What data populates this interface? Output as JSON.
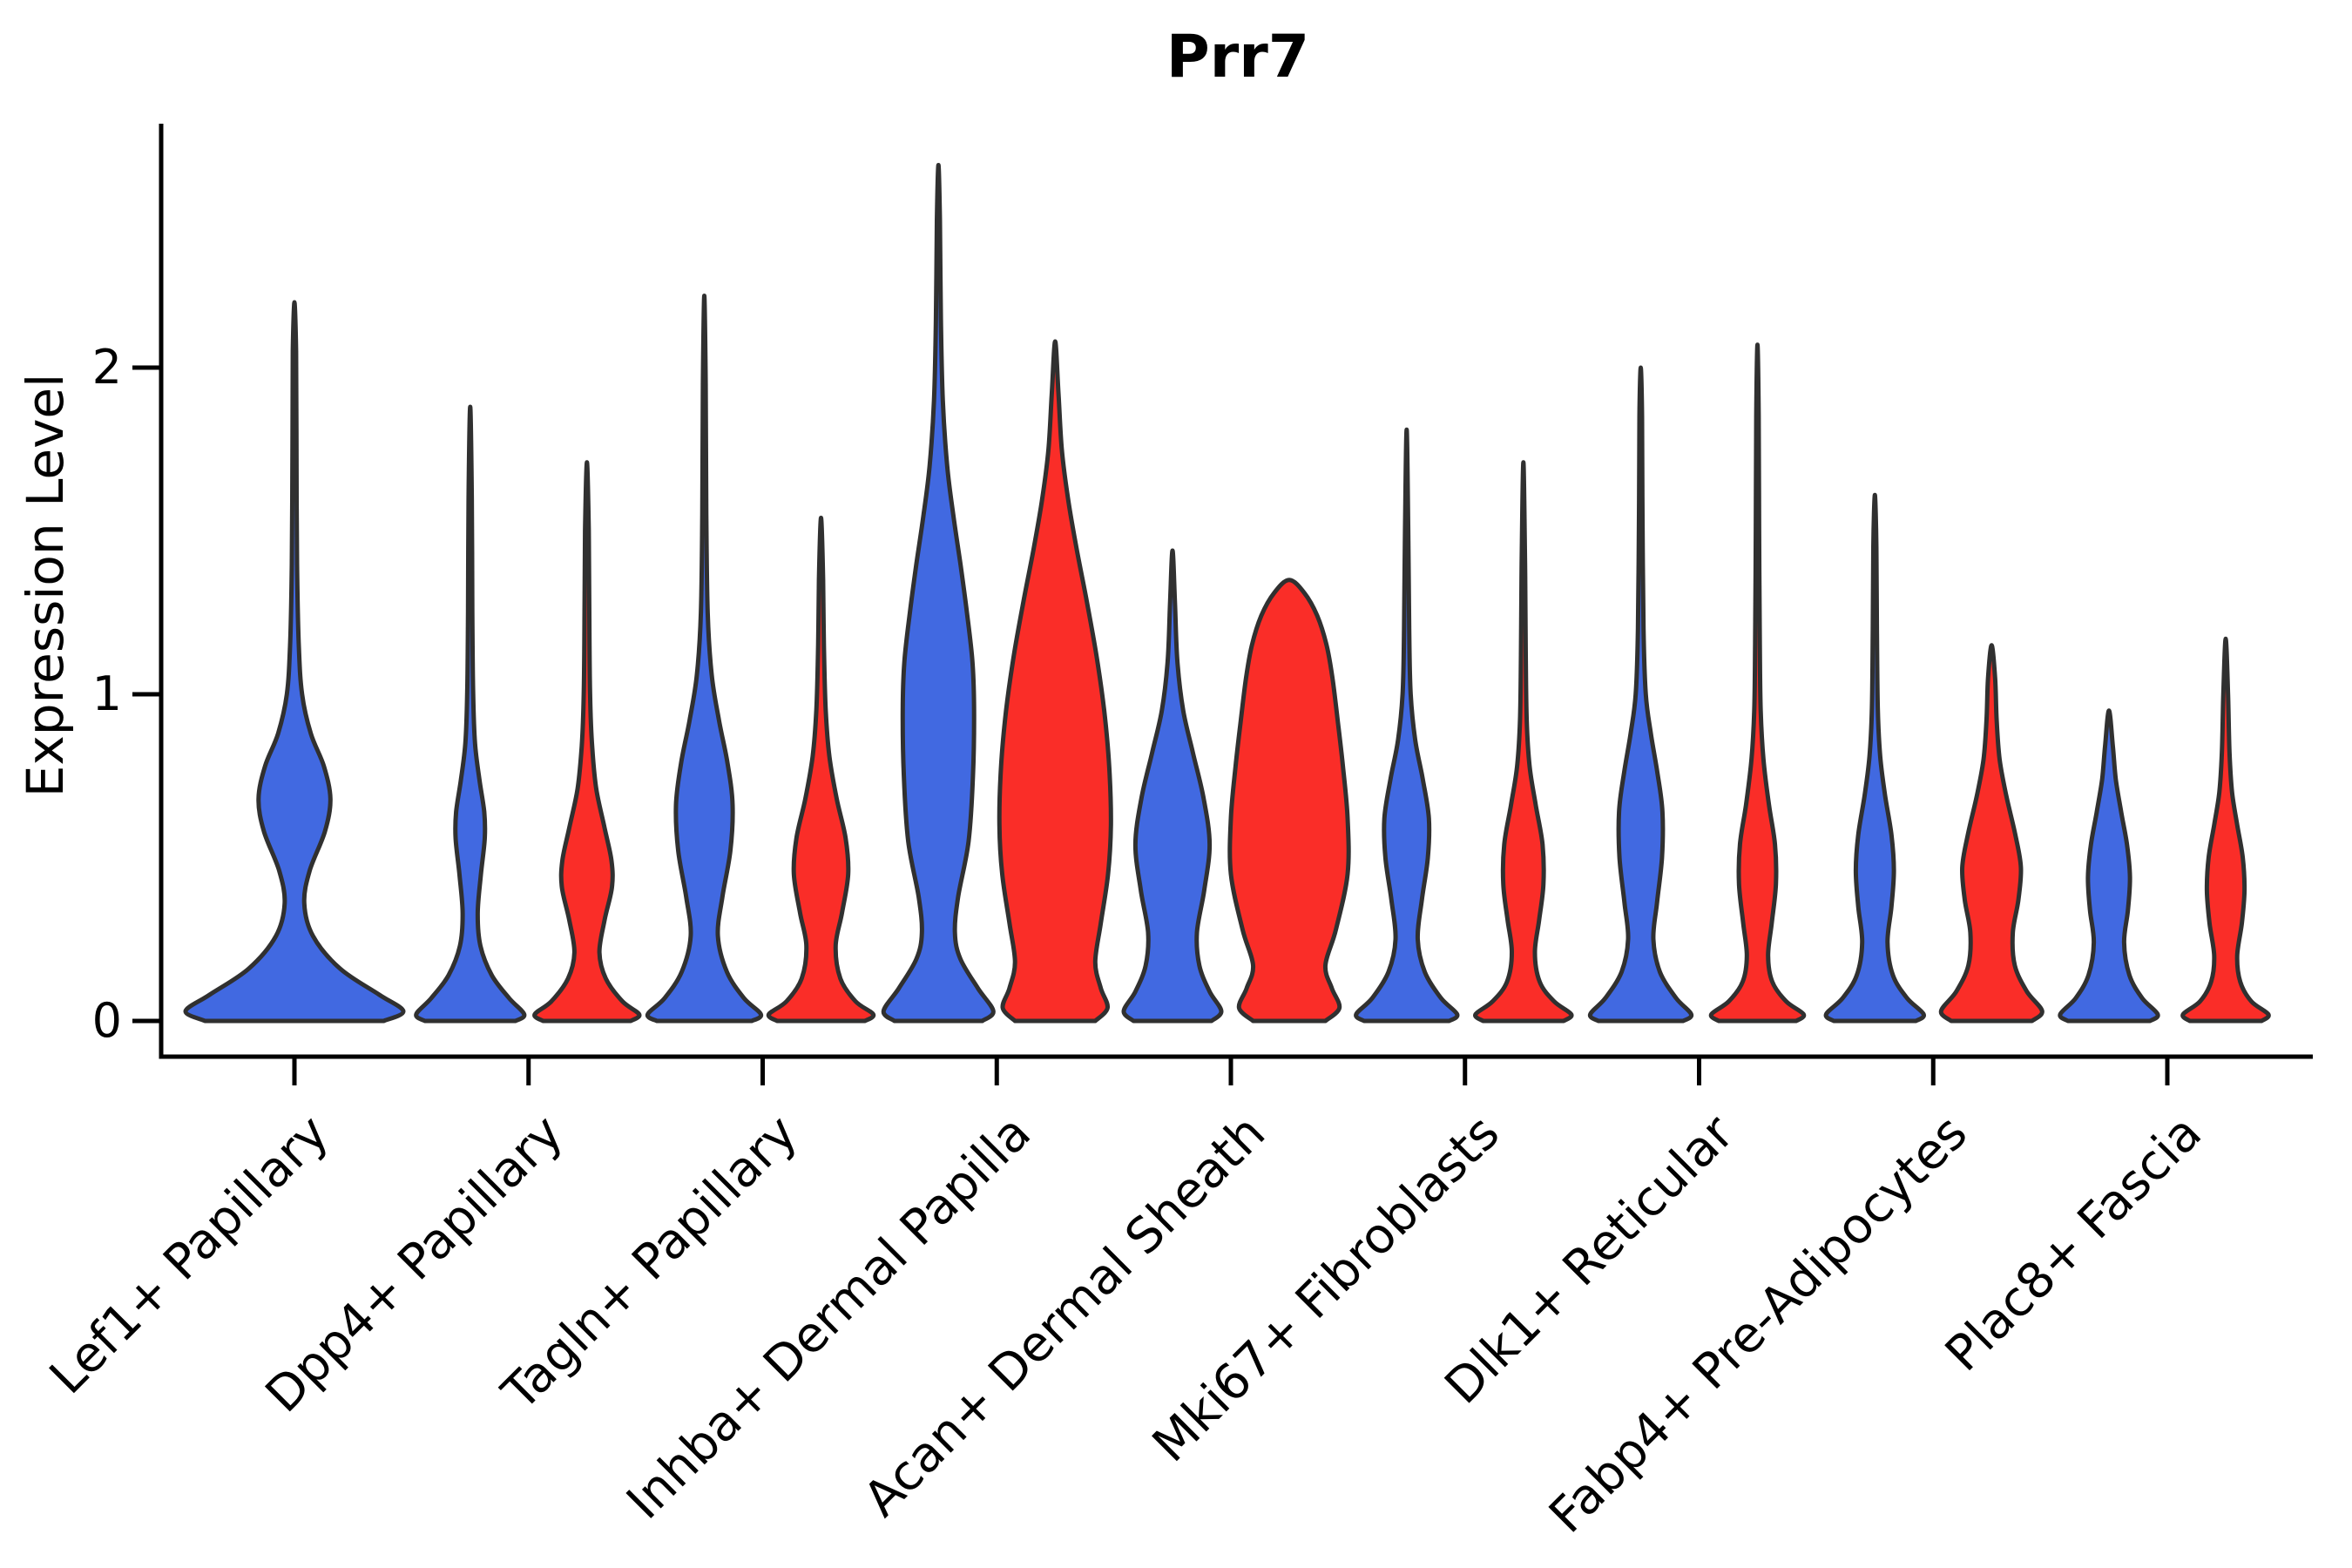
{
  "chart_data": {
    "type": "violin",
    "title": "Prr7",
    "xlabel": "",
    "ylabel": "Expression Level",
    "yticks": [
      0,
      1,
      2
    ],
    "ylim": [
      -0.11,
      2.77
    ],
    "grid": false,
    "legend": "none",
    "split_colors": {
      "blue": "#4169e1",
      "red": "#fa2d28"
    },
    "outline_color": "#303030",
    "axis_color": "#000000",
    "categories": [
      "Lef1+ Papillary",
      "Dpp4+ Papillary",
      "Tagln+ Papillary",
      "Inhba+ Dermal Papilla",
      "Acan+ Dermal Sheath",
      "Mki67+ Fibroblasts",
      "Dlk1+ Reticular",
      "Fabp4+ Pre-Adipocytes",
      "Plac8+ Fascia"
    ],
    "violins": [
      {
        "category": "Lef1+ Papillary",
        "split": "single",
        "color": "blue",
        "peak": 2.2,
        "hw": 125,
        "profile": [
          [
            0,
            0.82
          ],
          [
            0.03,
            1.0
          ],
          [
            0.08,
            0.78
          ],
          [
            0.16,
            0.42
          ],
          [
            0.26,
            0.17
          ],
          [
            0.36,
            0.09
          ],
          [
            0.46,
            0.14
          ],
          [
            0.58,
            0.28
          ],
          [
            0.68,
            0.33
          ],
          [
            0.78,
            0.27
          ],
          [
            0.88,
            0.15
          ],
          [
            1.0,
            0.07
          ],
          [
            1.15,
            0.04
          ],
          [
            1.4,
            0.024
          ],
          [
            1.8,
            0.018
          ],
          [
            2.05,
            0.015
          ],
          [
            2.2,
            0
          ]
        ]
      },
      {
        "category": "Dpp4+ Papillary",
        "split": "left",
        "color": "blue",
        "peak": 1.88,
        "hw": 62,
        "profile": [
          [
            0,
            0.84
          ],
          [
            0.02,
            1.0
          ],
          [
            0.07,
            0.72
          ],
          [
            0.14,
            0.4
          ],
          [
            0.23,
            0.19
          ],
          [
            0.33,
            0.14
          ],
          [
            0.45,
            0.2
          ],
          [
            0.56,
            0.27
          ],
          [
            0.64,
            0.26
          ],
          [
            0.74,
            0.17
          ],
          [
            0.85,
            0.09
          ],
          [
            1.0,
            0.055
          ],
          [
            1.25,
            0.04
          ],
          [
            1.6,
            0.03
          ],
          [
            1.88,
            0
          ]
        ]
      },
      {
        "category": "Dpp4+ Papillary",
        "split": "right",
        "color": "red",
        "peak": 1.71,
        "hw": 60,
        "profile": [
          [
            0,
            0.84
          ],
          [
            0.02,
            1.0
          ],
          [
            0.06,
            0.68
          ],
          [
            0.13,
            0.36
          ],
          [
            0.21,
            0.24
          ],
          [
            0.31,
            0.34
          ],
          [
            0.41,
            0.48
          ],
          [
            0.49,
            0.47
          ],
          [
            0.59,
            0.34
          ],
          [
            0.71,
            0.18
          ],
          [
            0.84,
            0.1
          ],
          [
            1.0,
            0.06
          ],
          [
            1.25,
            0.045
          ],
          [
            1.5,
            0.035
          ],
          [
            1.71,
            0
          ]
        ]
      },
      {
        "category": "Tagln+ Papillary",
        "split": "left",
        "color": "blue",
        "peak": 2.22,
        "hw": 65,
        "profile": [
          [
            0,
            0.84
          ],
          [
            0.02,
            1.0
          ],
          [
            0.07,
            0.7
          ],
          [
            0.15,
            0.4
          ],
          [
            0.26,
            0.24
          ],
          [
            0.38,
            0.32
          ],
          [
            0.52,
            0.46
          ],
          [
            0.66,
            0.5
          ],
          [
            0.79,
            0.41
          ],
          [
            0.92,
            0.26
          ],
          [
            1.06,
            0.13
          ],
          [
            1.25,
            0.06
          ],
          [
            1.55,
            0.035
          ],
          [
            1.95,
            0.025
          ],
          [
            2.22,
            0
          ]
        ]
      },
      {
        "category": "Tagln+ Papillary",
        "split": "right",
        "color": "red",
        "peak": 1.54,
        "hw": 60,
        "profile": [
          [
            0,
            0.84
          ],
          [
            0.02,
            1.0
          ],
          [
            0.06,
            0.66
          ],
          [
            0.13,
            0.37
          ],
          [
            0.23,
            0.28
          ],
          [
            0.33,
            0.4
          ],
          [
            0.45,
            0.52
          ],
          [
            0.56,
            0.47
          ],
          [
            0.68,
            0.3
          ],
          [
            0.81,
            0.16
          ],
          [
            0.95,
            0.09
          ],
          [
            1.15,
            0.055
          ],
          [
            1.35,
            0.04
          ],
          [
            1.54,
            0
          ]
        ]
      },
      {
        "category": "Inhba+ Dermal Papilla",
        "split": "left",
        "color": "blue",
        "peak": 2.62,
        "hw": 63,
        "profile": [
          [
            0,
            0.8
          ],
          [
            0.03,
            1.0
          ],
          [
            0.1,
            0.72
          ],
          [
            0.19,
            0.4
          ],
          [
            0.27,
            0.3
          ],
          [
            0.38,
            0.36
          ],
          [
            0.55,
            0.55
          ],
          [
            0.75,
            0.63
          ],
          [
            0.95,
            0.65
          ],
          [
            1.1,
            0.62
          ],
          [
            1.25,
            0.52
          ],
          [
            1.4,
            0.4
          ],
          [
            1.55,
            0.27
          ],
          [
            1.7,
            0.16
          ],
          [
            1.9,
            0.08
          ],
          [
            2.15,
            0.045
          ],
          [
            2.45,
            0.028
          ],
          [
            2.62,
            0
          ]
        ]
      },
      {
        "category": "Inhba+ Dermal Papilla",
        "split": "right",
        "color": "red",
        "peak": 2.08,
        "hw": 64,
        "profile": [
          [
            0,
            0.72
          ],
          [
            0.04,
            0.94
          ],
          [
            0.1,
            0.82
          ],
          [
            0.18,
            0.72
          ],
          [
            0.3,
            0.82
          ],
          [
            0.45,
            0.95
          ],
          [
            0.6,
            1.0
          ],
          [
            0.78,
            0.97
          ],
          [
            0.95,
            0.88
          ],
          [
            1.12,
            0.74
          ],
          [
            1.3,
            0.55
          ],
          [
            1.45,
            0.38
          ],
          [
            1.6,
            0.23
          ],
          [
            1.75,
            0.12
          ],
          [
            1.92,
            0.06
          ],
          [
            2.08,
            0
          ]
        ]
      },
      {
        "category": "Acan+ Dermal Sheath",
        "split": "left",
        "color": "blue",
        "peak": 1.44,
        "hw": 56,
        "profile": [
          [
            0,
            0.8
          ],
          [
            0.03,
            1.0
          ],
          [
            0.09,
            0.76
          ],
          [
            0.17,
            0.55
          ],
          [
            0.27,
            0.5
          ],
          [
            0.4,
            0.65
          ],
          [
            0.54,
            0.76
          ],
          [
            0.68,
            0.64
          ],
          [
            0.82,
            0.42
          ],
          [
            0.95,
            0.22
          ],
          [
            1.1,
            0.1
          ],
          [
            1.28,
            0.05
          ],
          [
            1.44,
            0
          ]
        ]
      },
      {
        "category": "Acan+ Dermal Sheath",
        "split": "right",
        "color": "red",
        "peak": 1.35,
        "hw": 67,
        "profile": [
          [
            0,
            0.62
          ],
          [
            0.04,
            0.86
          ],
          [
            0.1,
            0.73
          ],
          [
            0.17,
            0.62
          ],
          [
            0.28,
            0.8
          ],
          [
            0.45,
            1.0
          ],
          [
            0.62,
            1.0
          ],
          [
            0.78,
            0.92
          ],
          [
            0.92,
            0.83
          ],
          [
            1.05,
            0.74
          ],
          [
            1.15,
            0.64
          ],
          [
            1.24,
            0.48
          ],
          [
            1.31,
            0.26
          ],
          [
            1.35,
            0
          ]
        ]
      },
      {
        "category": "Mki67+ Fibroblasts",
        "split": "left",
        "color": "blue",
        "peak": 1.81,
        "hw": 58,
        "profile": [
          [
            0,
            0.84
          ],
          [
            0.02,
            1.0
          ],
          [
            0.07,
            0.68
          ],
          [
            0.15,
            0.36
          ],
          [
            0.25,
            0.22
          ],
          [
            0.37,
            0.3
          ],
          [
            0.5,
            0.42
          ],
          [
            0.62,
            0.44
          ],
          [
            0.74,
            0.32
          ],
          [
            0.86,
            0.17
          ],
          [
            1.0,
            0.08
          ],
          [
            1.2,
            0.05
          ],
          [
            1.5,
            0.032
          ],
          [
            1.81,
            0
          ]
        ]
      },
      {
        "category": "Mki67+ Fibroblasts",
        "split": "right",
        "color": "red",
        "peak": 1.71,
        "hw": 55,
        "profile": [
          [
            0,
            0.84
          ],
          [
            0.02,
            1.0
          ],
          [
            0.06,
            0.64
          ],
          [
            0.12,
            0.34
          ],
          [
            0.21,
            0.24
          ],
          [
            0.31,
            0.33
          ],
          [
            0.42,
            0.42
          ],
          [
            0.54,
            0.4
          ],
          [
            0.66,
            0.26
          ],
          [
            0.78,
            0.13
          ],
          [
            0.92,
            0.07
          ],
          [
            1.12,
            0.05
          ],
          [
            1.4,
            0.035
          ],
          [
            1.71,
            0
          ]
        ]
      },
      {
        "category": "Dlk1+ Reticular",
        "split": "left",
        "color": "blue",
        "peak": 2.0,
        "hw": 58,
        "profile": [
          [
            0,
            0.84
          ],
          [
            0.02,
            1.0
          ],
          [
            0.07,
            0.7
          ],
          [
            0.15,
            0.38
          ],
          [
            0.25,
            0.25
          ],
          [
            0.36,
            0.32
          ],
          [
            0.5,
            0.42
          ],
          [
            0.64,
            0.43
          ],
          [
            0.76,
            0.33
          ],
          [
            0.88,
            0.2
          ],
          [
            1.0,
            0.1
          ],
          [
            1.2,
            0.055
          ],
          [
            1.55,
            0.034
          ],
          [
            1.85,
            0.026
          ],
          [
            2.0,
            0
          ]
        ]
      },
      {
        "category": "Dlk1+ Reticular",
        "split": "right",
        "color": "red",
        "peak": 2.07,
        "hw": 53,
        "profile": [
          [
            0,
            0.84
          ],
          [
            0.02,
            1.0
          ],
          [
            0.06,
            0.62
          ],
          [
            0.12,
            0.32
          ],
          [
            0.2,
            0.23
          ],
          [
            0.3,
            0.31
          ],
          [
            0.42,
            0.4
          ],
          [
            0.54,
            0.38
          ],
          [
            0.66,
            0.25
          ],
          [
            0.8,
            0.13
          ],
          [
            0.95,
            0.07
          ],
          [
            1.15,
            0.05
          ],
          [
            1.5,
            0.035
          ],
          [
            1.85,
            0.027
          ],
          [
            2.07,
            0
          ]
        ]
      },
      {
        "category": "Fabp4+ Pre-Adipocytes",
        "split": "left",
        "color": "blue",
        "peak": 1.61,
        "hw": 56,
        "profile": [
          [
            0,
            0.84
          ],
          [
            0.02,
            1.0
          ],
          [
            0.07,
            0.66
          ],
          [
            0.14,
            0.37
          ],
          [
            0.24,
            0.26
          ],
          [
            0.35,
            0.34
          ],
          [
            0.46,
            0.39
          ],
          [
            0.57,
            0.34
          ],
          [
            0.69,
            0.21
          ],
          [
            0.81,
            0.11
          ],
          [
            0.96,
            0.06
          ],
          [
            1.2,
            0.042
          ],
          [
            1.45,
            0.032
          ],
          [
            1.61,
            0
          ]
        ]
      },
      {
        "category": "Fabp4+ Pre-Adipocytes",
        "split": "right",
        "color": "red",
        "peak": 1.15,
        "hw": 58,
        "profile": [
          [
            0,
            0.8
          ],
          [
            0.03,
            1.0
          ],
          [
            0.09,
            0.7
          ],
          [
            0.17,
            0.46
          ],
          [
            0.27,
            0.42
          ],
          [
            0.37,
            0.53
          ],
          [
            0.47,
            0.58
          ],
          [
            0.57,
            0.47
          ],
          [
            0.69,
            0.29
          ],
          [
            0.8,
            0.16
          ],
          [
            0.92,
            0.1
          ],
          [
            1.05,
            0.07
          ],
          [
            1.15,
            0
          ]
        ]
      },
      {
        "category": "Plac8+ Fascia",
        "split": "left",
        "color": "blue",
        "peak": 0.95,
        "hw": 56,
        "profile": [
          [
            0,
            0.84
          ],
          [
            0.02,
            1.0
          ],
          [
            0.07,
            0.68
          ],
          [
            0.14,
            0.42
          ],
          [
            0.24,
            0.31
          ],
          [
            0.34,
            0.39
          ],
          [
            0.44,
            0.43
          ],
          [
            0.54,
            0.37
          ],
          [
            0.64,
            0.25
          ],
          [
            0.74,
            0.14
          ],
          [
            0.84,
            0.08
          ],
          [
            0.95,
            0
          ]
        ]
      },
      {
        "category": "Plac8+ Fascia",
        "split": "right",
        "color": "red",
        "peak": 1.17,
        "hw": 49,
        "profile": [
          [
            0,
            0.84
          ],
          [
            0.02,
            1.0
          ],
          [
            0.06,
            0.6
          ],
          [
            0.12,
            0.34
          ],
          [
            0.2,
            0.27
          ],
          [
            0.3,
            0.38
          ],
          [
            0.4,
            0.44
          ],
          [
            0.5,
            0.4
          ],
          [
            0.6,
            0.27
          ],
          [
            0.7,
            0.15
          ],
          [
            0.82,
            0.09
          ],
          [
            1.0,
            0.055
          ],
          [
            1.17,
            0
          ]
        ]
      }
    ]
  }
}
